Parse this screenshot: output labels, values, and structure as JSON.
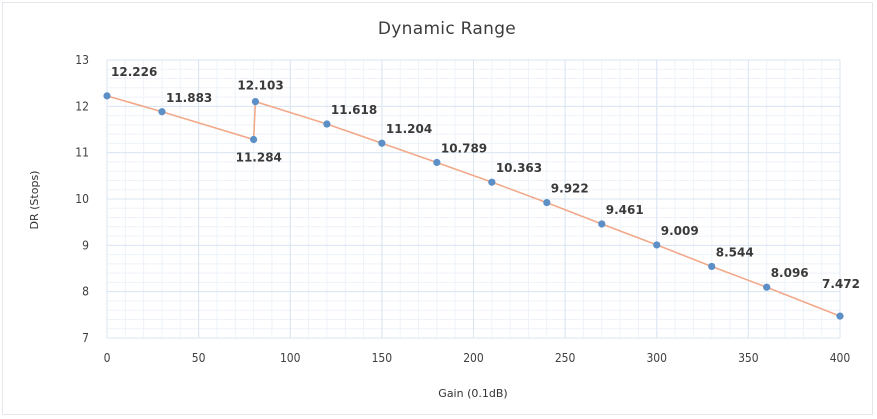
{
  "chart_data": {
    "type": "line",
    "title": "Dynamic Range",
    "xlabel": "Gain (0.1dB)",
    "ylabel": "DR (Stops)",
    "xlim": [
      0,
      400
    ],
    "ylim": [
      7,
      13
    ],
    "x_ticks": [
      0,
      50,
      100,
      150,
      200,
      250,
      300,
      350,
      400
    ],
    "y_ticks": [
      7,
      8,
      9,
      10,
      11,
      12,
      13
    ],
    "grid": true,
    "legend": "none",
    "colors": {
      "line": "#f2a98a",
      "marker": "#5b8fc6"
    },
    "series": [
      {
        "points": [
          {
            "x": 0,
            "y": 12.226,
            "label": "12.226"
          },
          {
            "x": 30,
            "y": 11.883,
            "label": "11.883"
          },
          {
            "x": 80,
            "y": 11.284,
            "label": "11.284"
          },
          {
            "x": 81,
            "y": 12.103,
            "label": "12.103"
          },
          {
            "x": 120,
            "y": 11.618,
            "label": "11.618"
          },
          {
            "x": 150,
            "y": 11.204,
            "label": "11.204"
          },
          {
            "x": 180,
            "y": 10.789,
            "label": "10.789"
          },
          {
            "x": 210,
            "y": 10.363,
            "label": "10.363"
          },
          {
            "x": 240,
            "y": 9.922,
            "label": "9.922"
          },
          {
            "x": 270,
            "y": 9.461,
            "label": "9.461"
          },
          {
            "x": 300,
            "y": 9.009,
            "label": "9.009"
          },
          {
            "x": 330,
            "y": 8.544,
            "label": "8.544"
          },
          {
            "x": 360,
            "y": 8.096,
            "label": "8.096"
          },
          {
            "x": 400,
            "y": 7.472,
            "label": "7.472"
          }
        ]
      }
    ]
  }
}
